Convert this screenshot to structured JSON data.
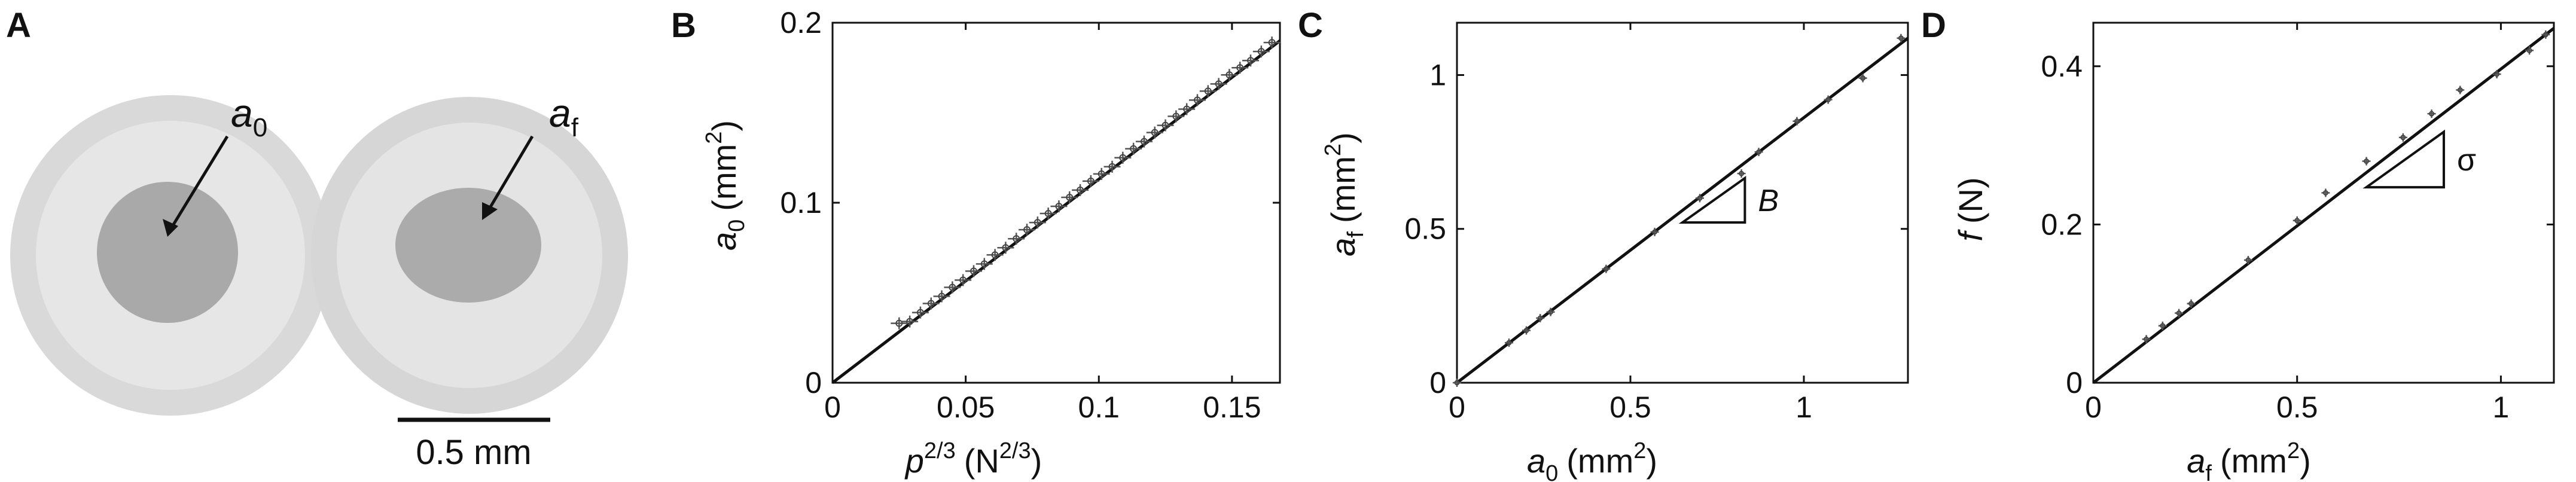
{
  "panel_a": {
    "letter": "A",
    "label_left": "a0",
    "label_left_base": "a",
    "label_left_sub": "0",
    "label_right": "af",
    "label_right_base": "a",
    "label_right_sub": "f",
    "scalebar_label": "0.5 mm",
    "scalebar_mm": 0.5
  },
  "chart_data": [
    {
      "panel": "B",
      "type": "scatter",
      "xlabel": "p^(2/3) (N^(2/3))",
      "xlabel_base": "p",
      "xlabel_sup": "2/3",
      "xlabel_unit_pre": "(N",
      "xlabel_unit_sup": "2/3",
      "xlabel_unit_post": ")",
      "ylabel": "a0 (mm^2)",
      "ylabel_base": "a",
      "ylabel_sub": "0",
      "ylabel_unit_pre": "(mm",
      "ylabel_unit_sup": "2",
      "ylabel_unit_post": ")",
      "xlim": [
        0,
        0.168
      ],
      "ylim": [
        0,
        0.2
      ],
      "xticks": [
        0,
        0.05,
        0.1,
        0.15
      ],
      "xtick_labels": [
        "0",
        "0.05",
        "0.1",
        "0.15"
      ],
      "yticks": [
        0,
        0.1,
        0.2
      ],
      "ytick_labels": [
        "0",
        "0.1",
        "0.2"
      ],
      "fit_line": {
        "x": [
          0,
          0.168
        ],
        "y": [
          0,
          0.19
        ]
      },
      "x": [
        0.025,
        0.029,
        0.033,
        0.037,
        0.041,
        0.045,
        0.049,
        0.053,
        0.057,
        0.061,
        0.065,
        0.069,
        0.073,
        0.077,
        0.081,
        0.085,
        0.089,
        0.093,
        0.097,
        0.101,
        0.105,
        0.109,
        0.113,
        0.117,
        0.121,
        0.125,
        0.129,
        0.133,
        0.137,
        0.141,
        0.145,
        0.149,
        0.153,
        0.157,
        0.161,
        0.165
      ],
      "y": [
        0.033,
        0.034,
        0.039,
        0.044,
        0.048,
        0.053,
        0.057,
        0.062,
        0.066,
        0.071,
        0.075,
        0.08,
        0.085,
        0.089,
        0.094,
        0.098,
        0.103,
        0.107,
        0.112,
        0.116,
        0.12,
        0.125,
        0.13,
        0.134,
        0.139,
        0.143,
        0.148,
        0.152,
        0.157,
        0.162,
        0.166,
        0.171,
        0.175,
        0.179,
        0.184,
        0.189
      ],
      "grid": false
    },
    {
      "panel": "C",
      "type": "scatter",
      "xlabel": "a0 (mm2)",
      "xlabel_base": "a",
      "xlabel_sub": "0",
      "xlabel_unit_pre": "(mm",
      "xlabel_unit_sup": "2",
      "xlabel_unit_post": ")",
      "ylabel": "af (mm2)",
      "ylabel_base": "a",
      "ylabel_sub": "f",
      "ylabel_unit_pre": "(mm",
      "ylabel_unit_sup": "2",
      "ylabel_unit_post": ")",
      "xlim": [
        0,
        1.3
      ],
      "ylim": [
        0,
        1.17
      ],
      "xticks": [
        0,
        0.5,
        1
      ],
      "xtick_labels": [
        "0",
        "0.5",
        "1"
      ],
      "yticks": [
        0,
        0.5,
        1
      ],
      "ytick_labels": [
        "0",
        "0.5",
        "1"
      ],
      "fit_line": {
        "x": [
          0,
          1.3
        ],
        "y": [
          0,
          1.12
        ]
      },
      "x": [
        0,
        0.15,
        0.2,
        0.24,
        0.27,
        0.43,
        0.57,
        0.7,
        0.82,
        0.87,
        0.98,
        1.07,
        1.17,
        1.28
      ],
      "y": [
        0,
        0.13,
        0.17,
        0.21,
        0.23,
        0.37,
        0.49,
        0.6,
        0.68,
        0.75,
        0.85,
        0.92,
        0.99,
        1.12
      ],
      "annotation": "B",
      "grid": false
    },
    {
      "panel": "D",
      "type": "scatter",
      "xlabel": "af (mm2)",
      "xlabel_base": "a",
      "xlabel_sub": "f",
      "xlabel_unit_pre": "(mm",
      "xlabel_unit_sup": "2",
      "xlabel_unit_post": ")",
      "ylabel": "f (N)",
      "ylabel_base": "f",
      "ylabel_unit": "(N)",
      "xlim": [
        0,
        1.13
      ],
      "ylim": [
        0,
        0.455
      ],
      "xticks": [
        0,
        0.5,
        1
      ],
      "xtick_labels": [
        "0",
        "0.5",
        "1"
      ],
      "yticks": [
        0,
        0.2,
        0.4
      ],
      "ytick_labels": [
        "0",
        "0.2",
        "0.4"
      ],
      "fit_line": {
        "x": [
          0,
          1.13
        ],
        "y": [
          0,
          0.448
        ]
      },
      "x": [
        0.13,
        0.17,
        0.21,
        0.24,
        0.38,
        0.5,
        0.57,
        0.67,
        0.76,
        0.83,
        0.9,
        0.99,
        1.07,
        1.11
      ],
      "y": [
        0.055,
        0.072,
        0.088,
        0.1,
        0.155,
        0.205,
        0.24,
        0.28,
        0.31,
        0.34,
        0.37,
        0.39,
        0.42,
        0.44
      ],
      "annotation": "σ",
      "grid": false
    }
  ]
}
